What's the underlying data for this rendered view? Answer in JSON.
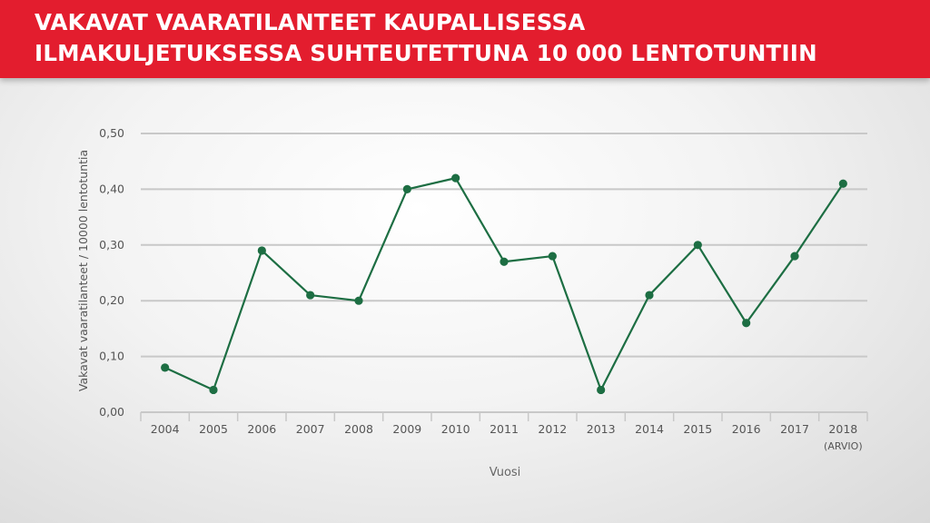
{
  "header": {
    "title_line1": "VAKAVAT VAARATILANTEET KAUPALLISESSA",
    "title_line2": "ILMAKULJETUKSESSA SUHTEUTETTUNA 10 000 LENTOTUNTIIN"
  },
  "colors": {
    "banner": "#e31d2e",
    "series": "#1d6e43",
    "grid": "#c8c8c8",
    "axis_text": "#555555"
  },
  "chart_data": {
    "type": "line",
    "title": "VAKAVAT VAARATILANTEET KAUPALLISESSA ILMAKULJETUKSESSA SUHTEUTETTUNA 10 000 LENTOTUNTIIN",
    "xlabel": "Vuosi",
    "ylabel": "Vakavat vaaratilanteet / 10000 lentotuntia",
    "categories": [
      "2004",
      "2005",
      "2006",
      "2007",
      "2008",
      "2009",
      "2010",
      "2011",
      "2012",
      "2013",
      "2014",
      "2015",
      "2016",
      "2017",
      "2018"
    ],
    "category_sublabels": [
      "",
      "",
      "",
      "",
      "",
      "",
      "",
      "",
      "",
      "",
      "",
      "",
      "",
      "",
      "(ARVIO)"
    ],
    "values": [
      0.08,
      0.04,
      0.29,
      0.21,
      0.2,
      0.4,
      0.42,
      0.27,
      0.28,
      0.04,
      0.21,
      0.3,
      0.16,
      0.28,
      0.41
    ],
    "yticks": [
      "0,00",
      "0,10",
      "0,20",
      "0,30",
      "0,40",
      "0,50"
    ],
    "ylim": [
      0,
      0.5
    ],
    "grid": true,
    "legend": "none"
  }
}
